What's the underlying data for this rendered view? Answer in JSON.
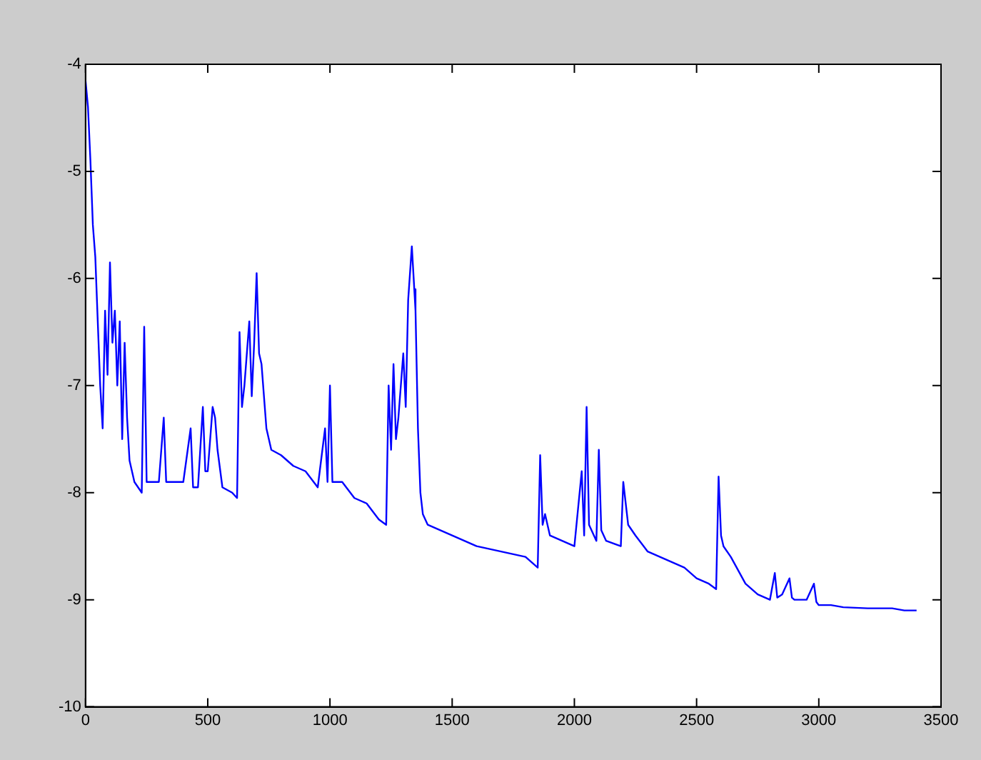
{
  "chart_data": {
    "type": "line",
    "x": [
      0,
      10,
      20,
      30,
      40,
      50,
      60,
      70,
      80,
      90,
      100,
      110,
      120,
      130,
      140,
      150,
      160,
      170,
      180,
      200,
      230,
      240,
      250,
      300,
      320,
      330,
      360,
      400,
      430,
      440,
      460,
      480,
      490,
      500,
      520,
      530,
      540,
      560,
      600,
      620,
      630,
      640,
      650,
      670,
      680,
      690,
      700,
      710,
      720,
      740,
      760,
      800,
      850,
      900,
      950,
      980,
      990,
      1000,
      1010,
      1050,
      1100,
      1150,
      1200,
      1230,
      1240,
      1250,
      1260,
      1270,
      1280,
      1300,
      1310,
      1320,
      1335,
      1345,
      1350,
      1360,
      1370,
      1380,
      1400,
      1450,
      1500,
      1550,
      1600,
      1700,
      1800,
      1850,
      1860,
      1870,
      1880,
      1900,
      1950,
      2000,
      2030,
      2040,
      2050,
      2060,
      2090,
      2100,
      2110,
      2130,
      2190,
      2200,
      2220,
      2250,
      2300,
      2400,
      2450,
      2500,
      2550,
      2580,
      2590,
      2600,
      2610,
      2640,
      2700,
      2750,
      2800,
      2820,
      2830,
      2850,
      2880,
      2890,
      2900,
      2950,
      2980,
      2990,
      3000,
      3050,
      3100,
      3200,
      3300,
      3350,
      3400
    ],
    "series": [
      {
        "color": "#0000ff",
        "values": [
          -4.15,
          -4.4,
          -4.9,
          -5.5,
          -5.8,
          -6.4,
          -7.0,
          -7.4,
          -6.3,
          -6.9,
          -5.85,
          -6.6,
          -6.3,
          -7.0,
          -6.4,
          -7.5,
          -6.6,
          -7.3,
          -7.7,
          -7.9,
          -8.0,
          -6.45,
          -7.9,
          -7.9,
          -7.3,
          -7.9,
          -7.9,
          -7.9,
          -7.4,
          -7.95,
          -7.95,
          -7.2,
          -7.8,
          -7.8,
          -7.2,
          -7.3,
          -7.6,
          -7.95,
          -8.0,
          -8.05,
          -6.5,
          -7.2,
          -7.0,
          -6.4,
          -7.1,
          -6.6,
          -5.95,
          -6.7,
          -6.8,
          -7.4,
          -7.6,
          -7.65,
          -7.75,
          -7.8,
          -7.95,
          -7.4,
          -7.9,
          -7.0,
          -7.9,
          -7.9,
          -8.05,
          -8.1,
          -8.25,
          -8.3,
          -7.0,
          -7.6,
          -6.8,
          -7.5,
          -7.3,
          -6.7,
          -7.2,
          -6.2,
          -5.7,
          -6.1,
          -6.3,
          -7.4,
          -8.0,
          -8.2,
          -8.3,
          -8.35,
          -8.4,
          -8.45,
          -8.5,
          -8.55,
          -8.6,
          -8.7,
          -7.65,
          -8.3,
          -8.2,
          -8.4,
          -8.45,
          -8.5,
          -7.8,
          -8.4,
          -7.2,
          -8.3,
          -8.45,
          -7.6,
          -8.35,
          -8.45,
          -8.5,
          -7.9,
          -8.3,
          -8.4,
          -8.55,
          -8.65,
          -8.7,
          -8.8,
          -8.85,
          -8.9,
          -7.85,
          -8.4,
          -8.5,
          -8.6,
          -8.85,
          -8.95,
          -9.0,
          -8.75,
          -8.98,
          -8.95,
          -8.8,
          -8.98,
          -9.0,
          -9.0,
          -8.85,
          -9.02,
          -9.05,
          -9.05,
          -9.07,
          -9.08,
          -9.08,
          -9.1,
          -9.1
        ]
      }
    ],
    "xlim": [
      0,
      3500
    ],
    "xticks": [
      0,
      500,
      1000,
      1500,
      2000,
      2500,
      3000,
      3500
    ],
    "ylim": [
      -10,
      -4
    ],
    "yticks": [
      -10,
      -9,
      -8,
      -7,
      -6,
      -5,
      -4
    ],
    "grid": false,
    "legend": false,
    "marker": "none",
    "line_style": "solid"
  }
}
